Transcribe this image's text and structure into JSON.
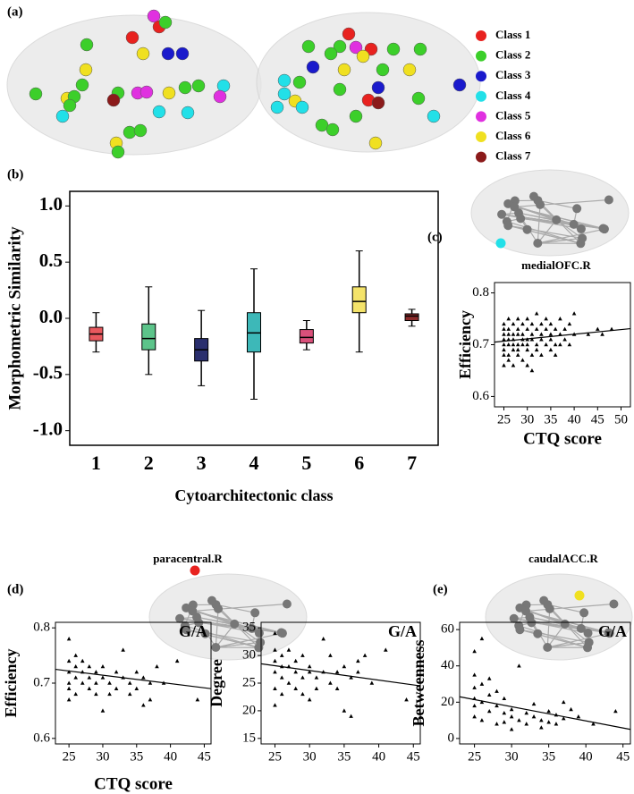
{
  "panels": [
    "(a)",
    "(b)",
    "(c)",
    "(d)",
    "(e)"
  ],
  "brain_map": {
    "legend": [
      {
        "name": "Class 1",
        "color": "#e8221f"
      },
      {
        "name": "Class 2",
        "color": "#3ccf2a"
      },
      {
        "name": "Class 3",
        "color": "#1a1acc"
      },
      {
        "name": "Class 4",
        "color": "#22e0e8"
      },
      {
        "name": "Class 5",
        "color": "#e030e0"
      },
      {
        "name": "Class 6",
        "color": "#f0e020"
      },
      {
        "name": "Class 7",
        "color": "#8b1a1a"
      }
    ]
  },
  "chart_data": [
    {
      "type": "box",
      "xlabel": "Cytoarchitectonic class",
      "ylabel": "Morphometric Similarity",
      "categories": [
        "1",
        "2",
        "3",
        "4",
        "5",
        "6",
        "7"
      ],
      "colors": [
        "#e8585e",
        "#5cc48a",
        "#2a2f6e",
        "#3db8b8",
        "#d9507a",
        "#f4e36a",
        "#8b2a2a"
      ],
      "low": [
        -0.3,
        -0.5,
        -0.6,
        -0.72,
        -0.28,
        -0.3,
        -0.07
      ],
      "q1": [
        -0.2,
        -0.28,
        -0.38,
        -0.3,
        -0.22,
        0.05,
        -0.02
      ],
      "median": [
        -0.14,
        -0.18,
        -0.28,
        -0.13,
        -0.17,
        0.15,
        0.02
      ],
      "q3": [
        -0.08,
        -0.05,
        -0.18,
        0.05,
        -0.1,
        0.28,
        0.04
      ],
      "high": [
        0.05,
        0.28,
        0.07,
        0.44,
        -0.02,
        0.6,
        0.08
      ],
      "ylim": [
        -1.13,
        1.13
      ],
      "yticks": [
        {
          "value": -1,
          "label": "-1.0"
        },
        -0.5,
        {
          "value": 0,
          "label": "0.0"
        },
        0.5,
        {
          "value": 1,
          "label": "1.0"
        }
      ]
    },
    {
      "type": "scatter",
      "region": "medialOFC.R",
      "xlabel": "CTQ score",
      "ylabel": "Efficiency",
      "xlim": [
        23,
        52
      ],
      "xticks": [
        25,
        30,
        35,
        40,
        45,
        50
      ],
      "ylim": [
        0.58,
        0.82
      ],
      "yticks": [
        0.6,
        0.7,
        0.8
      ],
      "x": [
        25,
        25,
        25,
        25,
        25,
        25,
        25,
        25,
        26,
        26,
        26,
        26,
        26,
        26,
        26,
        27,
        27,
        27,
        27,
        27,
        27,
        28,
        28,
        28,
        28,
        28,
        28,
        29,
        29,
        29,
        29,
        29,
        30,
        30,
        30,
        30,
        30,
        30,
        31,
        31,
        31,
        31,
        31,
        32,
        32,
        32,
        32,
        33,
        33,
        33,
        33,
        34,
        34,
        34,
        35,
        35,
        35,
        35,
        36,
        36,
        36,
        37,
        37,
        37,
        38,
        38,
        39,
        39,
        40,
        40,
        43,
        45,
        46,
        48
      ],
      "y": [
        0.7,
        0.72,
        0.68,
        0.74,
        0.71,
        0.66,
        0.73,
        0.69,
        0.71,
        0.75,
        0.7,
        0.68,
        0.72,
        0.73,
        0.67,
        0.72,
        0.7,
        0.74,
        0.69,
        0.71,
        0.66,
        0.73,
        0.7,
        0.68,
        0.72,
        0.75,
        0.69,
        0.71,
        0.74,
        0.67,
        0.7,
        0.72,
        0.69,
        0.73,
        0.75,
        0.71,
        0.66,
        0.7,
        0.72,
        0.74,
        0.68,
        0.65,
        0.71,
        0.7,
        0.76,
        0.73,
        0.69,
        0.72,
        0.68,
        0.74,
        0.71,
        0.7,
        0.73,
        0.75,
        0.72,
        0.69,
        0.74,
        0.71,
        0.7,
        0.73,
        0.68,
        0.72,
        0.75,
        0.7,
        0.71,
        0.73,
        0.7,
        0.74,
        0.76,
        0.72,
        0.72,
        0.73,
        0.72,
        0.73
      ],
      "fit": {
        "x": [
          23,
          52
        ],
        "y": [
          0.705,
          0.731
        ]
      }
    },
    {
      "type": "scatter",
      "region": "paracentral.R",
      "annotation": "G/A",
      "xlabel": "CTQ score",
      "ylabel": "Efficiency",
      "xlim": [
        23,
        46
      ],
      "xticks": [
        25,
        30,
        35,
        40,
        45
      ],
      "ylim": [
        0.59,
        0.81
      ],
      "yticks": [
        0.6,
        0.7,
        0.8
      ],
      "x": [
        25,
        25,
        25,
        25,
        25,
        25,
        26,
        26,
        26,
        26,
        27,
        27,
        27,
        28,
        28,
        28,
        29,
        29,
        29,
        30,
        30,
        30,
        31,
        31,
        32,
        32,
        33,
        33,
        34,
        34,
        35,
        35,
        36,
        36,
        37,
        37,
        38,
        39,
        41,
        44
      ],
      "y": [
        0.78,
        0.74,
        0.72,
        0.7,
        0.69,
        0.67,
        0.73,
        0.71,
        0.75,
        0.68,
        0.72,
        0.7,
        0.74,
        0.73,
        0.69,
        0.71,
        0.72,
        0.7,
        0.68,
        0.71,
        0.65,
        0.73,
        0.7,
        0.68,
        0.72,
        0.69,
        0.76,
        0.71,
        0.7,
        0.68,
        0.72,
        0.69,
        0.66,
        0.71,
        0.67,
        0.7,
        0.73,
        0.7,
        0.74,
        0.67
      ],
      "fit": {
        "x": [
          23,
          46
        ],
        "y": [
          0.725,
          0.69
        ]
      }
    },
    {
      "type": "scatter",
      "annotation": "G/A",
      "ylabel": "Degree",
      "xlim": [
        23,
        46
      ],
      "xticks": [
        25,
        30,
        35,
        40,
        45
      ],
      "ylim": [
        14,
        36
      ],
      "yticks": [
        15,
        20,
        25,
        30,
        35
      ],
      "x": [
        25,
        25,
        25,
        25,
        25,
        25,
        26,
        26,
        26,
        26,
        27,
        27,
        27,
        28,
        28,
        28,
        29,
        29,
        29,
        30,
        30,
        30,
        31,
        31,
        32,
        32,
        33,
        33,
        34,
        34,
        35,
        35,
        36,
        36,
        37,
        37,
        38,
        39,
        41,
        44
      ],
      "y": [
        34,
        31,
        29,
        27,
        24,
        21,
        30,
        28,
        26,
        23,
        31,
        28,
        25,
        29,
        27,
        24,
        30,
        26,
        23,
        28,
        22,
        27,
        26,
        24,
        33,
        27,
        30,
        25,
        27,
        24,
        20,
        28,
        19,
        26,
        27,
        29,
        30,
        25,
        31,
        22
      ],
      "fit": {
        "x": [
          23,
          46
        ],
        "y": [
          28.5,
          24.5
        ]
      }
    },
    {
      "type": "scatter",
      "region": "caudalACC.R",
      "annotation": "G/A",
      "ylabel": "Betweenness",
      "xlim": [
        23,
        46
      ],
      "xticks": [
        25,
        30,
        35,
        40,
        45
      ],
      "ylim": [
        -3,
        64
      ],
      "yticks": [
        0,
        20,
        40,
        60
      ],
      "x": [
        25,
        25,
        25,
        25,
        25,
        25,
        26,
        26,
        26,
        26,
        27,
        27,
        27,
        28,
        28,
        28,
        29,
        29,
        29,
        30,
        30,
        30,
        31,
        31,
        32,
        32,
        33,
        33,
        34,
        34,
        35,
        35,
        36,
        36,
        37,
        37,
        38,
        39,
        41,
        44
      ],
      "y": [
        48,
        35,
        28,
        22,
        18,
        12,
        55,
        30,
        20,
        10,
        33,
        24,
        15,
        26,
        18,
        8,
        22,
        14,
        9,
        16,
        5,
        12,
        40,
        10,
        14,
        8,
        19,
        12,
        10,
        6,
        15,
        9,
        13,
        8,
        20,
        11,
        16,
        12,
        8,
        15
      ],
      "fit": {
        "x": [
          23,
          46
        ],
        "y": [
          23,
          5
        ]
      }
    }
  ]
}
